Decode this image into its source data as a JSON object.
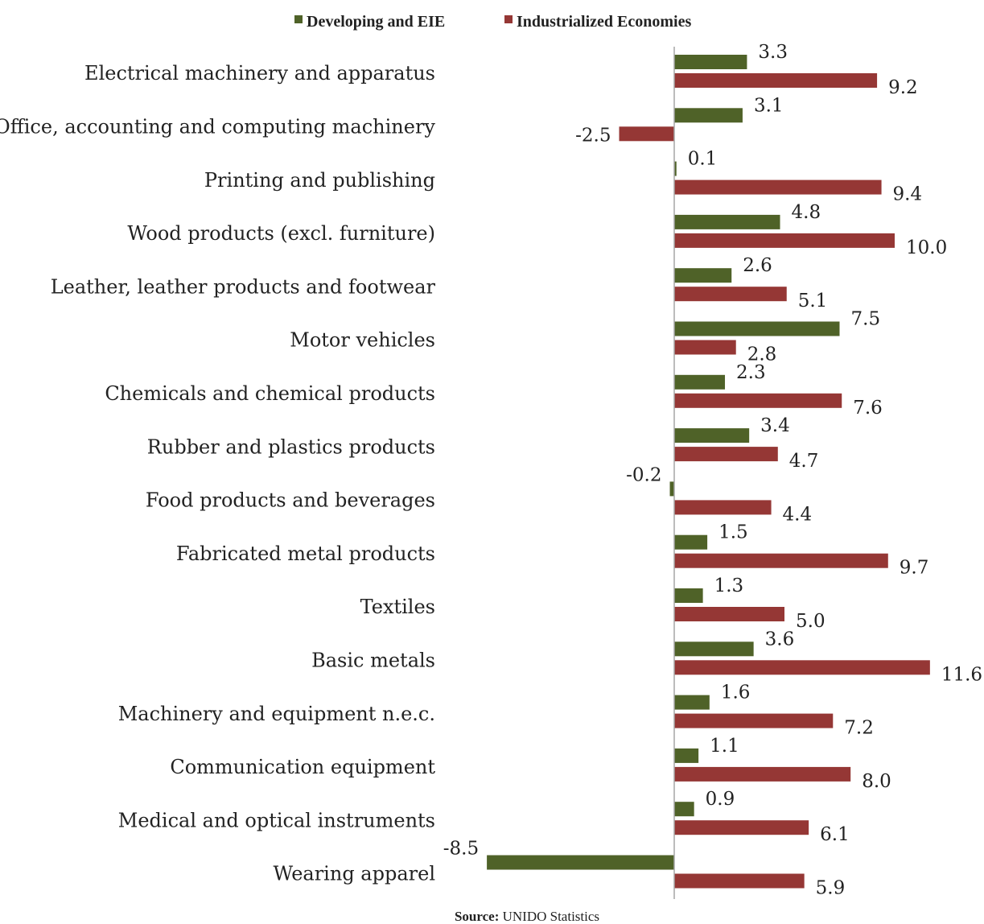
{
  "chart_data": {
    "type": "bar",
    "orientation": "horizontal",
    "categories": [
      "Electrical machinery and apparatus",
      "Office, accounting and computing machinery",
      "Printing and publishing",
      "Wood products (excl. furniture)",
      "Leather, leather products and footwear",
      "Motor vehicles",
      "Chemicals and chemical products",
      "Rubber and plastics products",
      "Food products and beverages",
      "Fabricated metal products",
      "Textiles",
      "Basic metals",
      "Machinery and equipment n.e.c.",
      "Communication equipment",
      "Medical and optical instruments",
      "Wearing apparel"
    ],
    "series": [
      {
        "name": "Developing and EIE",
        "color": "#4f6228",
        "values": [
          3.3,
          3.1,
          0.1,
          4.8,
          2.6,
          7.5,
          2.3,
          3.4,
          -0.2,
          1.5,
          1.3,
          3.6,
          1.6,
          1.1,
          0.9,
          -8.5
        ],
        "labels": [
          "3.3",
          "3.1",
          "0.1",
          "4.8",
          "2.6",
          "7.5",
          "2.3",
          "3.4",
          "-0.2",
          "1.5",
          "1.3",
          "3.6",
          "1.6",
          "1.1",
          "0.9",
          "-8.5"
        ]
      },
      {
        "name": "Industrialized Economies",
        "color": "#953735",
        "values": [
          9.2,
          -2.5,
          9.4,
          10.0,
          5.1,
          2.8,
          7.6,
          4.7,
          4.4,
          9.7,
          5.0,
          11.6,
          7.2,
          8.0,
          6.1,
          5.9
        ],
        "labels": [
          "9.2",
          "-2.5",
          "9.4",
          "10.0",
          "5.1",
          "2.8",
          "7.6",
          "4.7",
          "4.4",
          "9.7",
          "5.0",
          "11.6",
          "7.2",
          "8.0",
          "6.1",
          "5.9"
        ]
      }
    ],
    "xlim": [
      -10,
      12.5
    ],
    "grid": false,
    "axis_color": "#a6a6a6",
    "legend_position": "top-center",
    "source_prefix": "Source: ",
    "source_text": "UNIDO Statistics"
  }
}
